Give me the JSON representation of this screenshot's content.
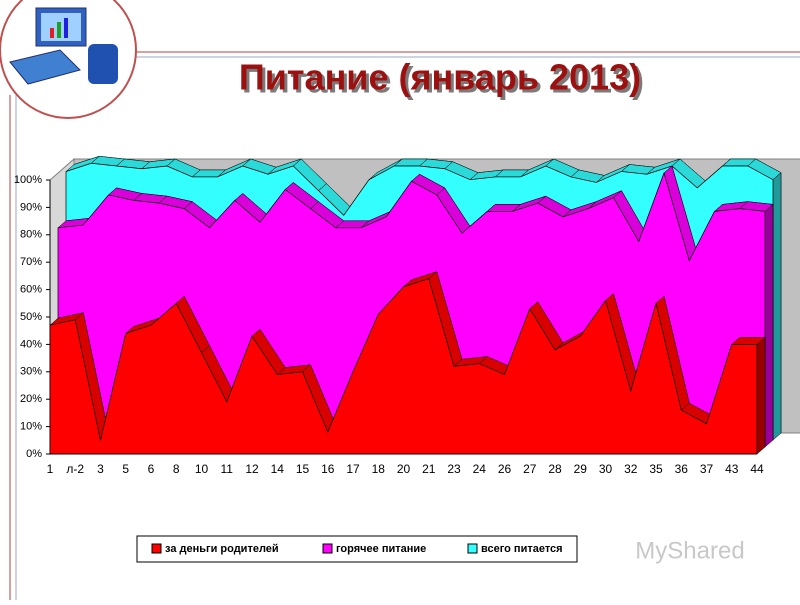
{
  "chart_data": {
    "type": "area3d",
    "title": "Питание (январь 2013)",
    "categories": [
      "1",
      "л-2",
      "3",
      "5",
      "6",
      "8",
      "10",
      "11",
      "12",
      "14",
      "15",
      "16",
      "17",
      "18",
      "20",
      "21",
      "23",
      "24",
      "26",
      "27",
      "28",
      "29",
      "30",
      "32",
      "35",
      "36",
      "37",
      "43",
      "44"
    ],
    "series": [
      {
        "name": "за деньги родителей",
        "color": "#ff0000",
        "values": [
          47,
          49,
          5,
          44,
          47,
          55,
          37,
          19,
          43,
          29,
          30,
          8,
          30,
          51,
          61,
          64,
          32,
          33,
          29,
          53,
          38,
          43,
          56,
          23,
          55,
          16,
          11,
          40,
          40
        ]
      },
      {
        "name": "горячее питание",
        "color": "#ff00ff",
        "values": [
          80,
          81,
          92,
          90,
          89,
          87,
          80,
          90,
          82,
          94,
          87,
          80,
          80,
          84,
          97,
          92,
          78,
          86,
          86,
          89,
          84,
          87,
          91,
          75,
          100,
          68,
          86,
          87,
          86
        ]
      },
      {
        "name": "всего питается",
        "color": "#33ffff",
        "values": [
          98,
          101,
          100,
          99,
          100,
          96,
          96,
          100,
          97,
          100,
          91,
          82,
          95,
          100,
          100,
          99,
          95,
          96,
          96,
          100,
          96,
          94,
          98,
          97,
          100,
          92,
          100,
          100,
          95
        ]
      }
    ],
    "ylim": [
      0,
      100
    ],
    "yticks": [
      {
        "value": 0,
        "label": "0%"
      },
      {
        "value": 10,
        "label": "10%"
      },
      {
        "value": 20,
        "label": "20%"
      },
      {
        "value": 30,
        "label": "30%"
      },
      {
        "value": 40,
        "label": "40%"
      },
      {
        "value": 50,
        "label": "50%"
      },
      {
        "value": 60,
        "label": "60%"
      },
      {
        "value": 70,
        "label": "70%"
      },
      {
        "value": 80,
        "label": "80%"
      },
      {
        "value": 90,
        "label": "90%"
      },
      {
        "value": 100,
        "label": "100%"
      }
    ],
    "legend": "bottom"
  },
  "watermark": "MyShared"
}
